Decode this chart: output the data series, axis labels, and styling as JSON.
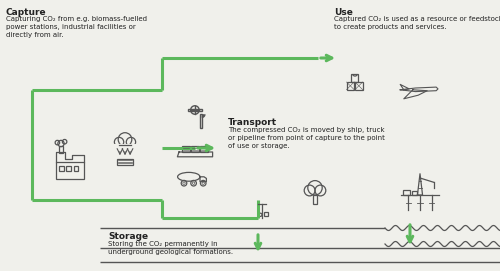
{
  "bg_color": "#f0f0eb",
  "green": "#5cb85c",
  "gray": "#555555",
  "dark_gray": "#222222",
  "capture_title": "Capture",
  "capture_text": "Capturing CO₂ from e.g. biomass-fuelled\npower stations, industrial facilities or\ndirectly from air.",
  "use_title": "Use",
  "use_text": "Captured CO₂ is used as a resource or feedstock\nto create products and services.",
  "transport_title": "Transport",
  "transport_text": "The compressed CO₂ is moved by ship, truck\nor pipeline from point of capture to the point\nof use or storage.",
  "storage_title": "Storage",
  "storage_text": "Storing the CO₂ permanently in\nunderground geological formations.",
  "figsize": [
    5.0,
    2.71
  ],
  "dpi": 100
}
